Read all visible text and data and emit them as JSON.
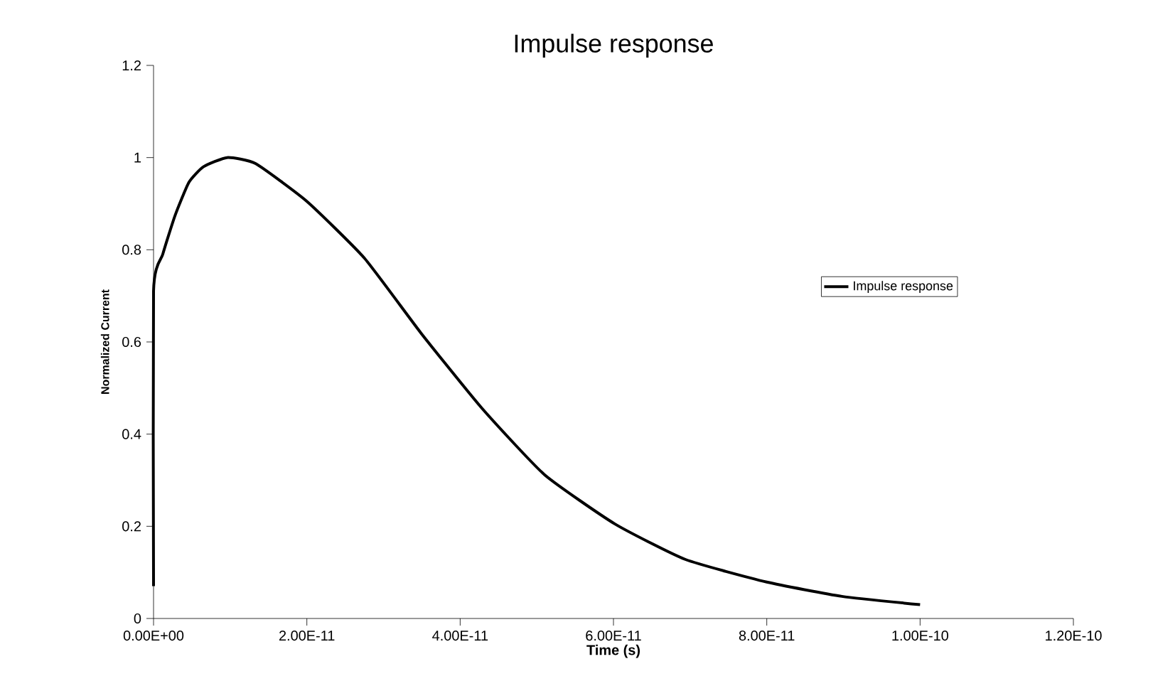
{
  "chart_data": {
    "type": "line",
    "title": "Impulse response",
    "xlabel": "Time (s)",
    "ylabel": "Normalized Current",
    "series": [
      {
        "name": "Impulse response",
        "color": "#000000",
        "x": [
          0,
          0,
          1.2e-12,
          2.8e-12,
          4.6e-12,
          6.5e-12,
          9.6e-12,
          1.33e-11,
          2e-11,
          2.75e-11,
          3.49e-11,
          4.29e-11,
          5.1e-11,
          6.02e-11,
          6.94e-11,
          8e-11,
          8.98e-11,
          1e-10
        ],
        "values": [
          0.07,
          0.71,
          0.79,
          0.874,
          0.946,
          0.98,
          1.0,
          0.987,
          0.905,
          0.782,
          0.619,
          0.455,
          0.312,
          0.205,
          0.128,
          0.079,
          0.048,
          0.03
        ]
      }
    ],
    "xlim": [
      0,
      1.2e-10
    ],
    "ylim": [
      0,
      1.2
    ],
    "xticks": [
      {
        "value": 0,
        "label": "0.00E+00"
      },
      {
        "value": 2e-11,
        "label": "2.00E-11"
      },
      {
        "value": 4e-11,
        "label": "4.00E-11"
      },
      {
        "value": 6e-11,
        "label": "6.00E-11"
      },
      {
        "value": 8e-11,
        "label": "8.00E-11"
      },
      {
        "value": 1e-10,
        "label": "1.00E-10"
      },
      {
        "value": 1.2e-10,
        "label": "1.20E-10"
      }
    ],
    "yticks": [
      0,
      0.2,
      0.4,
      0.6,
      0.8,
      1,
      1.2
    ],
    "grid": false,
    "legend": "right",
    "marker": "none",
    "line_style": "solid"
  }
}
